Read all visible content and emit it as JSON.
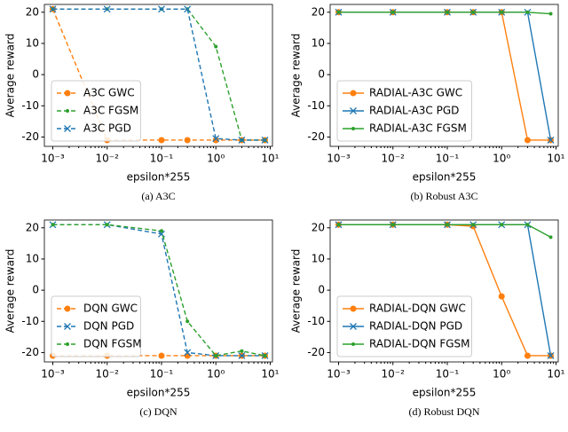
{
  "chart_data": [
    {
      "type": "line",
      "caption": "(a) A3C",
      "xlabel": "epsilon*255",
      "ylabel": "Average reward",
      "log_x": true,
      "x": [
        0.001,
        0.01,
        0.1,
        0.3,
        1,
        3,
        8
      ],
      "xlim": [
        0.0007,
        11
      ],
      "ylim": [
        -23,
        22.5
      ],
      "xticks": [
        {
          "value": 0.001,
          "label": "10⁻³"
        },
        {
          "value": 0.01,
          "label": "10⁻²"
        },
        {
          "value": 0.1,
          "label": "10⁻¹"
        },
        {
          "value": 1,
          "label": "10⁰"
        },
        {
          "value": 10,
          "label": "10¹"
        }
      ],
      "yticks": [
        -20,
        -10,
        0,
        10,
        20
      ],
      "legend": "lower left",
      "series": [
        {
          "name": "A3C GWC",
          "color": "#ff7f0e",
          "linestyle": "dashed",
          "marker": "circle",
          "values": [
            21,
            -21,
            -21,
            -21,
            -21,
            -21,
            -21
          ]
        },
        {
          "name": "A3C FGSM",
          "color": "#2ca02c",
          "linestyle": "dashed",
          "marker": "dot",
          "values": [
            21,
            21,
            21,
            21,
            9,
            -21,
            -21
          ]
        },
        {
          "name": "A3C PGD",
          "color": "#1f77b4",
          "linestyle": "dashed",
          "marker": "x",
          "values": [
            21,
            21,
            21,
            21,
            -20.5,
            -21,
            -21
          ]
        }
      ]
    },
    {
      "type": "line",
      "caption": "(b) Robust A3C",
      "xlabel": "epsilon*255",
      "ylabel": "Average reward",
      "log_x": true,
      "x": [
        0.001,
        0.01,
        0.1,
        0.3,
        1,
        3,
        8
      ],
      "xlim": [
        0.0007,
        11
      ],
      "ylim": [
        -23,
        22.5
      ],
      "xticks": [
        {
          "value": 0.001,
          "label": "10⁻³"
        },
        {
          "value": 0.01,
          "label": "10⁻²"
        },
        {
          "value": 0.1,
          "label": "10⁻¹"
        },
        {
          "value": 1,
          "label": "10⁰"
        },
        {
          "value": 10,
          "label": "10¹"
        }
      ],
      "yticks": [
        -20,
        -10,
        0,
        10,
        20
      ],
      "legend": "lower left",
      "series": [
        {
          "name": "RADIAL-A3C GWC",
          "color": "#ff7f0e",
          "linestyle": "solid",
          "marker": "circle",
          "values": [
            20,
            20,
            20,
            20,
            20,
            -21,
            -21
          ]
        },
        {
          "name": "RADIAL-A3C PGD",
          "color": "#1f77b4",
          "linestyle": "solid",
          "marker": "x",
          "values": [
            20,
            20,
            20,
            20,
            20,
            20,
            -21
          ]
        },
        {
          "name": "RADIAL-A3C FGSM",
          "color": "#2ca02c",
          "linestyle": "solid",
          "marker": "dot",
          "values": [
            20,
            20,
            20,
            20,
            20,
            20,
            19.5
          ]
        }
      ]
    },
    {
      "type": "line",
      "caption": "(c) DQN",
      "xlabel": "epsilon*255",
      "ylabel": "Average reward",
      "log_x": true,
      "x": [
        0.001,
        0.01,
        0.1,
        0.3,
        1,
        3,
        8
      ],
      "xlim": [
        0.0007,
        11
      ],
      "ylim": [
        -23,
        22.5
      ],
      "xticks": [
        {
          "value": 0.001,
          "label": "10⁻³"
        },
        {
          "value": 0.01,
          "label": "10⁻²"
        },
        {
          "value": 0.1,
          "label": "10⁻¹"
        },
        {
          "value": 1,
          "label": "10⁰"
        },
        {
          "value": 10,
          "label": "10¹"
        }
      ],
      "yticks": [
        -20,
        -10,
        0,
        10,
        20
      ],
      "legend": "lower left",
      "series": [
        {
          "name": "DQN GWC",
          "color": "#ff7f0e",
          "linestyle": "dashed",
          "marker": "circle",
          "values": [
            -21,
            -21,
            -21,
            -21,
            -21,
            -21,
            -21
          ]
        },
        {
          "name": "DQN PGD",
          "color": "#1f77b4",
          "linestyle": "dashed",
          "marker": "x",
          "values": [
            21,
            21,
            18,
            -20,
            -21,
            -21,
            -21
          ]
        },
        {
          "name": "DQN FGSM",
          "color": "#2ca02c",
          "linestyle": "dashed",
          "marker": "dot",
          "values": [
            21,
            21,
            19,
            -10,
            -21,
            -19.5,
            -21
          ]
        }
      ]
    },
    {
      "type": "line",
      "caption": "(d) Robust DQN",
      "xlabel": "epsilon*255",
      "ylabel": "Average reward",
      "log_x": true,
      "x": [
        0.001,
        0.01,
        0.1,
        0.3,
        1,
        3,
        8
      ],
      "xlim": [
        0.0007,
        11
      ],
      "ylim": [
        -23,
        22.5
      ],
      "xticks": [
        {
          "value": 0.001,
          "label": "10⁻³"
        },
        {
          "value": 0.01,
          "label": "10⁻²"
        },
        {
          "value": 0.1,
          "label": "10⁻¹"
        },
        {
          "value": 1,
          "label": "10⁰"
        },
        {
          "value": 10,
          "label": "10¹"
        }
      ],
      "yticks": [
        -20,
        -10,
        0,
        10,
        20
      ],
      "legend": "lower left",
      "series": [
        {
          "name": "RADIAL-DQN GWC",
          "color": "#ff7f0e",
          "linestyle": "solid",
          "marker": "circle",
          "values": [
            21,
            21,
            21,
            20.5,
            -2,
            -21,
            -21
          ]
        },
        {
          "name": "RADIAL-DQN PGD",
          "color": "#1f77b4",
          "linestyle": "solid",
          "marker": "x",
          "values": [
            21,
            21,
            21,
            21,
            21,
            21,
            -21
          ]
        },
        {
          "name": "RADIAL-DQN FGSM",
          "color": "#2ca02c",
          "linestyle": "solid",
          "marker": "dot",
          "values": [
            21,
            21,
            21,
            21,
            21,
            21,
            17
          ]
        }
      ]
    }
  ]
}
